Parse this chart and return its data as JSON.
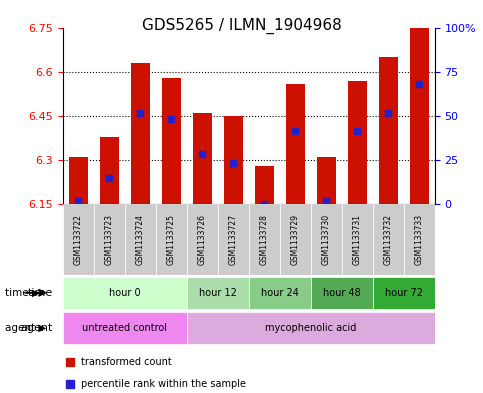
{
  "title": "GDS5265 / ILMN_1904968",
  "samples": [
    "GSM1133722",
    "GSM1133723",
    "GSM1133724",
    "GSM1133725",
    "GSM1133726",
    "GSM1133727",
    "GSM1133728",
    "GSM1133729",
    "GSM1133730",
    "GSM1133731",
    "GSM1133732",
    "GSM1133733"
  ],
  "bar_values": [
    6.31,
    6.38,
    6.63,
    6.58,
    6.46,
    6.45,
    6.28,
    6.56,
    6.31,
    6.57,
    6.65,
    6.75
  ],
  "percentile_values": [
    6.16,
    6.24,
    6.46,
    6.44,
    6.32,
    6.29,
    6.15,
    6.4,
    6.16,
    6.4,
    6.46,
    6.56
  ],
  "ylim_min": 6.15,
  "ylim_max": 6.75,
  "yticks_left": [
    6.15,
    6.3,
    6.45,
    6.6,
    6.75
  ],
  "yticks_right_vals": [
    0,
    25,
    50,
    75,
    100
  ],
  "yticks_right_pos": [
    6.15,
    6.3,
    6.45,
    6.6,
    6.75
  ],
  "bar_color": "#cc1100",
  "percentile_color": "#2222cc",
  "bar_width": 0.6,
  "time_groups": [
    {
      "label": "hour 0",
      "start": 0,
      "end": 3,
      "color": "#ccffcc"
    },
    {
      "label": "hour 12",
      "start": 4,
      "end": 5,
      "color": "#aaffaa"
    },
    {
      "label": "hour 24",
      "start": 6,
      "end": 7,
      "color": "#88ee88"
    },
    {
      "label": "hour 48",
      "start": 8,
      "end": 9,
      "color": "#66cc66"
    },
    {
      "label": "hour 72",
      "start": 10,
      "end": 11,
      "color": "#44bb44"
    }
  ],
  "agent_groups": [
    {
      "label": "untreated control",
      "start": 0,
      "end": 3,
      "color": "#ee88ee"
    },
    {
      "label": "mycophenolic acid",
      "start": 4,
      "end": 11,
      "color": "#ddaadd"
    }
  ],
  "sample_bg_color": "#cccccc",
  "legend_red_label": "transformed count",
  "legend_blue_label": "percentile rank within the sample",
  "time_label": "time",
  "agent_label": "agent"
}
